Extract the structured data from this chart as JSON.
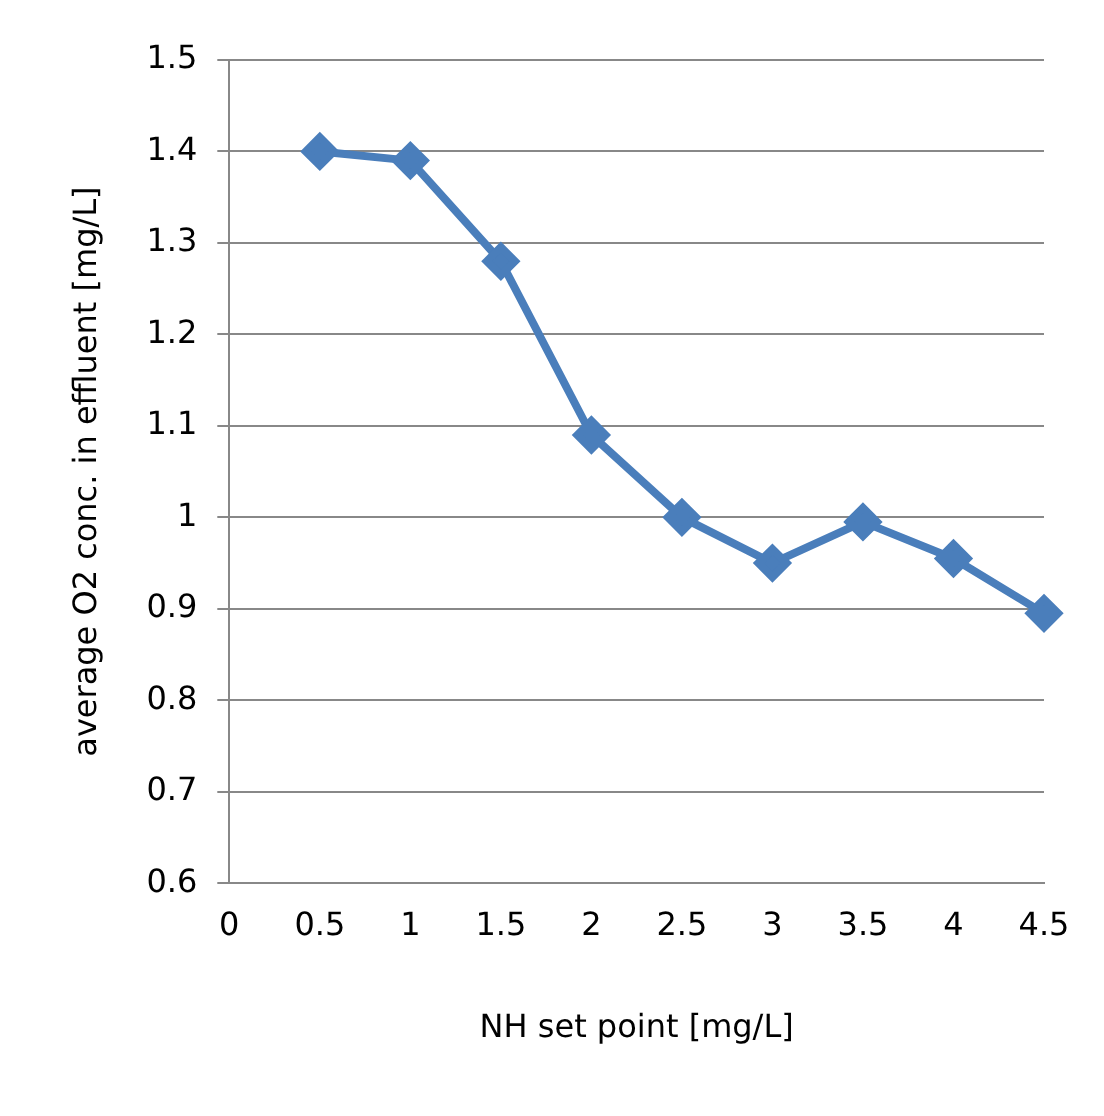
{
  "chart_data": {
    "type": "line",
    "xlabel": "NH set point [mg/L]",
    "ylabel": "average O2 conc. in effluent [mg/L]",
    "x": [
      0.5,
      1,
      1.5,
      2,
      2.5,
      3,
      3.5,
      4,
      4.5
    ],
    "series": [
      {
        "color": "#4a7ebb",
        "values": [
          1.4,
          1.39,
          1.28,
          1.09,
          1.0,
          0.95,
          0.995,
          0.955,
          0.895
        ]
      }
    ],
    "xlim": [
      0,
      4.5
    ],
    "xticks": [
      0,
      0.5,
      1,
      1.5,
      2,
      2.5,
      3,
      3.5,
      4,
      4.5
    ],
    "ylim": [
      0.6,
      1.5
    ],
    "yticks": [
      0.6,
      0.7,
      0.8,
      0.9,
      1,
      1.1,
      1.2,
      1.3,
      1.4,
      1.5
    ],
    "grid": "y",
    "legend": false,
    "marker": "diamond",
    "line_style": "solid"
  }
}
